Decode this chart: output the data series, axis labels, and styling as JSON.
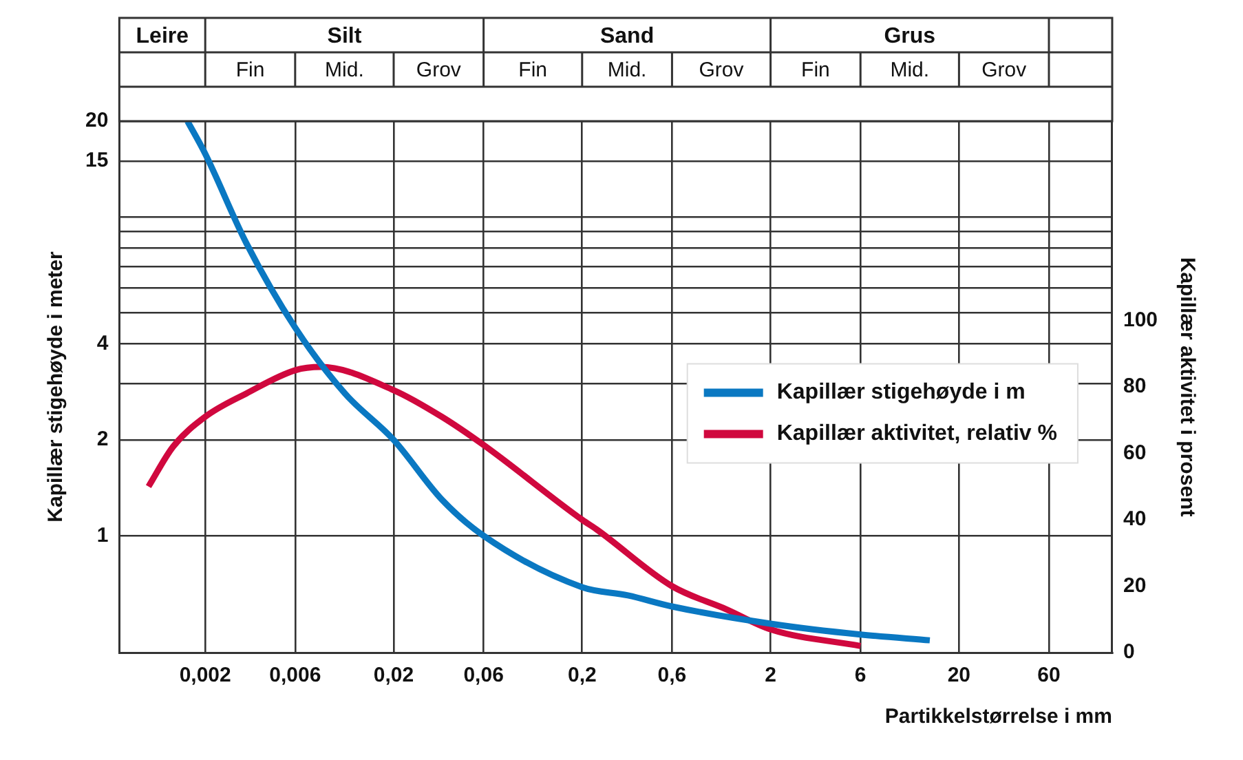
{
  "chart_data": {
    "type": "line",
    "xlabel": "Partikkelstørrelse i mm",
    "ylabel": "Kapillær stigehøyde i meter",
    "y2label": "Kapillær aktivitet i prosent",
    "log": "xy",
    "grid": true,
    "legend": "right",
    "marker": "none",
    "line_style": "solid",
    "xlim": [
      0.0007,
      130
    ],
    "xticks": [
      {
        "value": 0.002,
        "label": "0,002"
      },
      {
        "value": 0.006,
        "label": "0,006"
      },
      {
        "value": 0.02,
        "label": "0,02"
      },
      {
        "value": 0.06,
        "label": "0,06"
      },
      {
        "value": 0.2,
        "label": "0,2"
      },
      {
        "value": 0.6,
        "label": "0,6"
      },
      2,
      6,
      20,
      60
    ],
    "ylim": [
      0.43,
      20
    ],
    "yticks": [
      1,
      2,
      {
        "value": 3,
        "label": null
      },
      4,
      {
        "value": 5,
        "label": null
      },
      {
        "value": 6,
        "label": null
      },
      {
        "value": 7,
        "label": null
      },
      {
        "value": 8,
        "label": null
      },
      {
        "value": 9,
        "label": null
      },
      {
        "value": 10,
        "label": null
      },
      15,
      20
    ],
    "y2lim": [
      0,
      160
    ],
    "y2ticks": [
      0,
      20,
      40,
      60,
      80,
      100
    ],
    "annotations": [
      "Leire",
      "Silt",
      "Sand",
      "Grus",
      "Fin",
      "Mid.",
      "Grov",
      "Fin",
      "Mid.",
      "Grov",
      "Fin",
      "Mid.",
      "Grov"
    ],
    "series": [
      {
        "name": "Kapillær stigehøyde i m",
        "color": "#0a78c2",
        "x": [
          0.00161,
          0.002,
          0.0033,
          0.006,
          0.011,
          0.02,
          0.036,
          0.06,
          0.2,
          0.35,
          0.6,
          2,
          6,
          14
        ],
        "values": [
          20,
          15.8,
          8.3,
          4.5,
          2.8,
          2,
          1.3,
          1,
          0.69,
          0.65,
          0.6,
          0.53,
          0.49,
          0.47
        ]
      },
      {
        "name": "Kapillær aktivitet, relativ %",
        "color": "#d0083e",
        "axis": "y2",
        "x": [
          0.001,
          0.00135,
          0.002,
          0.0033,
          0.006,
          0.0082,
          0.02,
          0.036,
          0.06,
          0.2,
          0.24,
          0.6,
          1.17,
          2,
          6
        ],
        "values": [
          50,
          62,
          71,
          78,
          85,
          86,
          79,
          71,
          62.5,
          40,
          37,
          20,
          13,
          7,
          2
        ]
      }
    ]
  }
}
